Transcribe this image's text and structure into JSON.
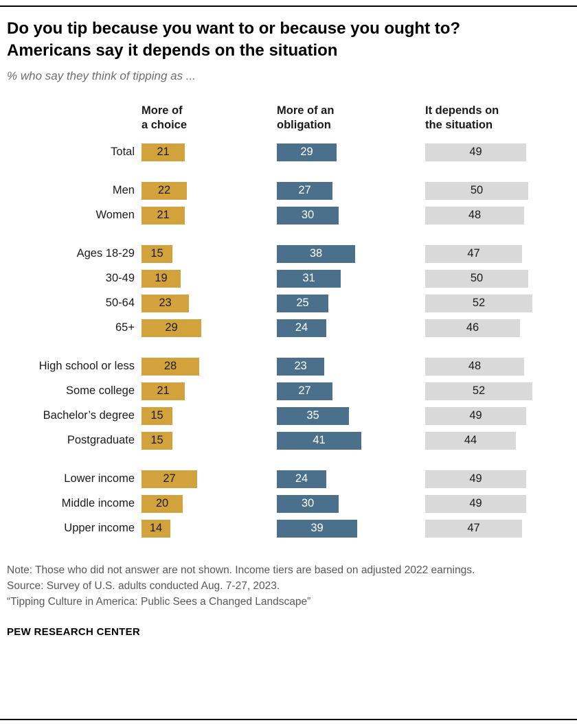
{
  "header": {
    "title": "Do you tip because you want to or because you ought to? Americans say it depends on the situation",
    "subtitle": "% who say they think of tipping as ..."
  },
  "chart_data": {
    "type": "bar",
    "orientation": "horizontal",
    "unit": "%",
    "xlim": [
      0,
      60
    ],
    "value_labels": "inside-bar",
    "legend_position": "column-headers",
    "columns": [
      {
        "key": "choice",
        "label": "More of\na choice",
        "color": "#d2a33c",
        "value_color": "#1a1a1a"
      },
      {
        "key": "obligation",
        "label": "More of an\nobligation",
        "color": "#4a708c",
        "value_color": "#ffffff"
      },
      {
        "key": "depends",
        "label": "It depends on\nthe situation",
        "color": "#d9d9d9",
        "value_color": "#1a1a1a"
      }
    ],
    "groups": [
      {
        "rows": [
          {
            "label": "Total",
            "values": [
              21,
              29,
              49
            ]
          }
        ]
      },
      {
        "rows": [
          {
            "label": "Men",
            "values": [
              22,
              27,
              50
            ]
          },
          {
            "label": "Women",
            "values": [
              21,
              30,
              48
            ]
          }
        ]
      },
      {
        "rows": [
          {
            "label": "Ages 18-29",
            "values": [
              15,
              38,
              47
            ]
          },
          {
            "label": "30-49",
            "values": [
              19,
              31,
              50
            ]
          },
          {
            "label": "50-64",
            "values": [
              23,
              25,
              52
            ]
          },
          {
            "label": "65+",
            "values": [
              29,
              24,
              46
            ]
          }
        ]
      },
      {
        "rows": [
          {
            "label": "High school or less",
            "values": [
              28,
              23,
              48
            ]
          },
          {
            "label": "Some college",
            "values": [
              21,
              27,
              52
            ]
          },
          {
            "label": "Bachelor’s degree",
            "values": [
              15,
              35,
              49
            ]
          },
          {
            "label": "Postgraduate",
            "values": [
              15,
              41,
              44
            ]
          }
        ]
      },
      {
        "rows": [
          {
            "label": "Lower income",
            "values": [
              27,
              24,
              49
            ]
          },
          {
            "label": "Middle income",
            "values": [
              20,
              30,
              49
            ]
          },
          {
            "label": "Upper income",
            "values": [
              14,
              39,
              47
            ]
          }
        ]
      }
    ]
  },
  "footer": {
    "note": "Note: Those who did not answer are not shown. Income tiers are based on adjusted 2022 earnings.",
    "source": "Source: Survey of U.S. adults conducted Aug. 7-27, 2023.",
    "report": "“Tipping Culture in America: Public Sees a Changed Landscape”",
    "brand": "PEW RESEARCH CENTER"
  }
}
